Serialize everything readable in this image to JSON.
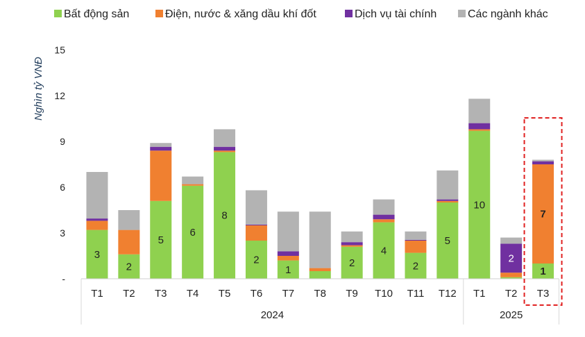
{
  "chart_data": {
    "type": "bar",
    "stacked": true,
    "ylabel": "Nghìn tỷ VNĐ",
    "ylim": [
      0,
      15
    ],
    "yticks": [
      "-",
      "3",
      "6",
      "9",
      "12",
      "15"
    ],
    "yticks_values": [
      0,
      3,
      6,
      9,
      12,
      15
    ],
    "legend_position": "top",
    "grid": false,
    "categories": [
      "T1",
      "T2",
      "T3",
      "T4",
      "T5",
      "T6",
      "T7",
      "T8",
      "T9",
      "T10",
      "T11",
      "T12",
      "T1",
      "T2",
      "T3"
    ],
    "groups": [
      {
        "label": "2024",
        "start": 0,
        "end": 11
      },
      {
        "label": "2025",
        "start": 12,
        "end": 14
      }
    ],
    "highlight_index": 14,
    "series": [
      {
        "name": "Bất động sản",
        "color": "#8fd14f",
        "values": [
          3.2,
          1.6,
          5.1,
          6.1,
          8.3,
          2.5,
          1.2,
          0.5,
          2.1,
          3.7,
          1.7,
          5.0,
          9.7,
          0.1,
          1.0
        ],
        "labels": [
          "3",
          "2",
          "5",
          "6",
          "8",
          "2",
          "1",
          "",
          "2",
          "4",
          "2",
          "5",
          "10",
          "",
          "1"
        ]
      },
      {
        "name": "Điện, nước & xăng dầu khí đốt",
        "color": "#f08030",
        "values": [
          0.6,
          1.6,
          3.3,
          0.1,
          0.1,
          1.0,
          0.3,
          0.2,
          0.1,
          0.2,
          0.8,
          0.1,
          0.1,
          0.3,
          6.5
        ],
        "labels": [
          "",
          "",
          "",
          "",
          "",
          "",
          "",
          "",
          "",
          "",
          "",
          "",
          "",
          "",
          "7"
        ]
      },
      {
        "name": "Dịch vụ tài chính",
        "color": "#7030a0",
        "values": [
          0.15,
          0.0,
          0.25,
          0.0,
          0.25,
          0.05,
          0.3,
          0.0,
          0.2,
          0.3,
          0.05,
          0.1,
          0.4,
          1.9,
          0.2
        ],
        "labels": [
          "",
          "",
          "",
          "",
          "",
          "",
          "",
          "",
          "",
          "",
          "",
          "",
          "",
          "2",
          ""
        ]
      },
      {
        "name": "Các ngành khác",
        "color": "#b3b3b3",
        "values": [
          3.05,
          1.3,
          0.25,
          0.5,
          1.15,
          2.25,
          2.6,
          3.7,
          0.7,
          1.0,
          0.55,
          1.9,
          1.6,
          0.4,
          0.1
        ],
        "labels": [
          "",
          "",
          "",
          "",
          "",
          "",
          "",
          "",
          "",
          "",
          "",
          "",
          "",
          "",
          ""
        ]
      }
    ]
  }
}
